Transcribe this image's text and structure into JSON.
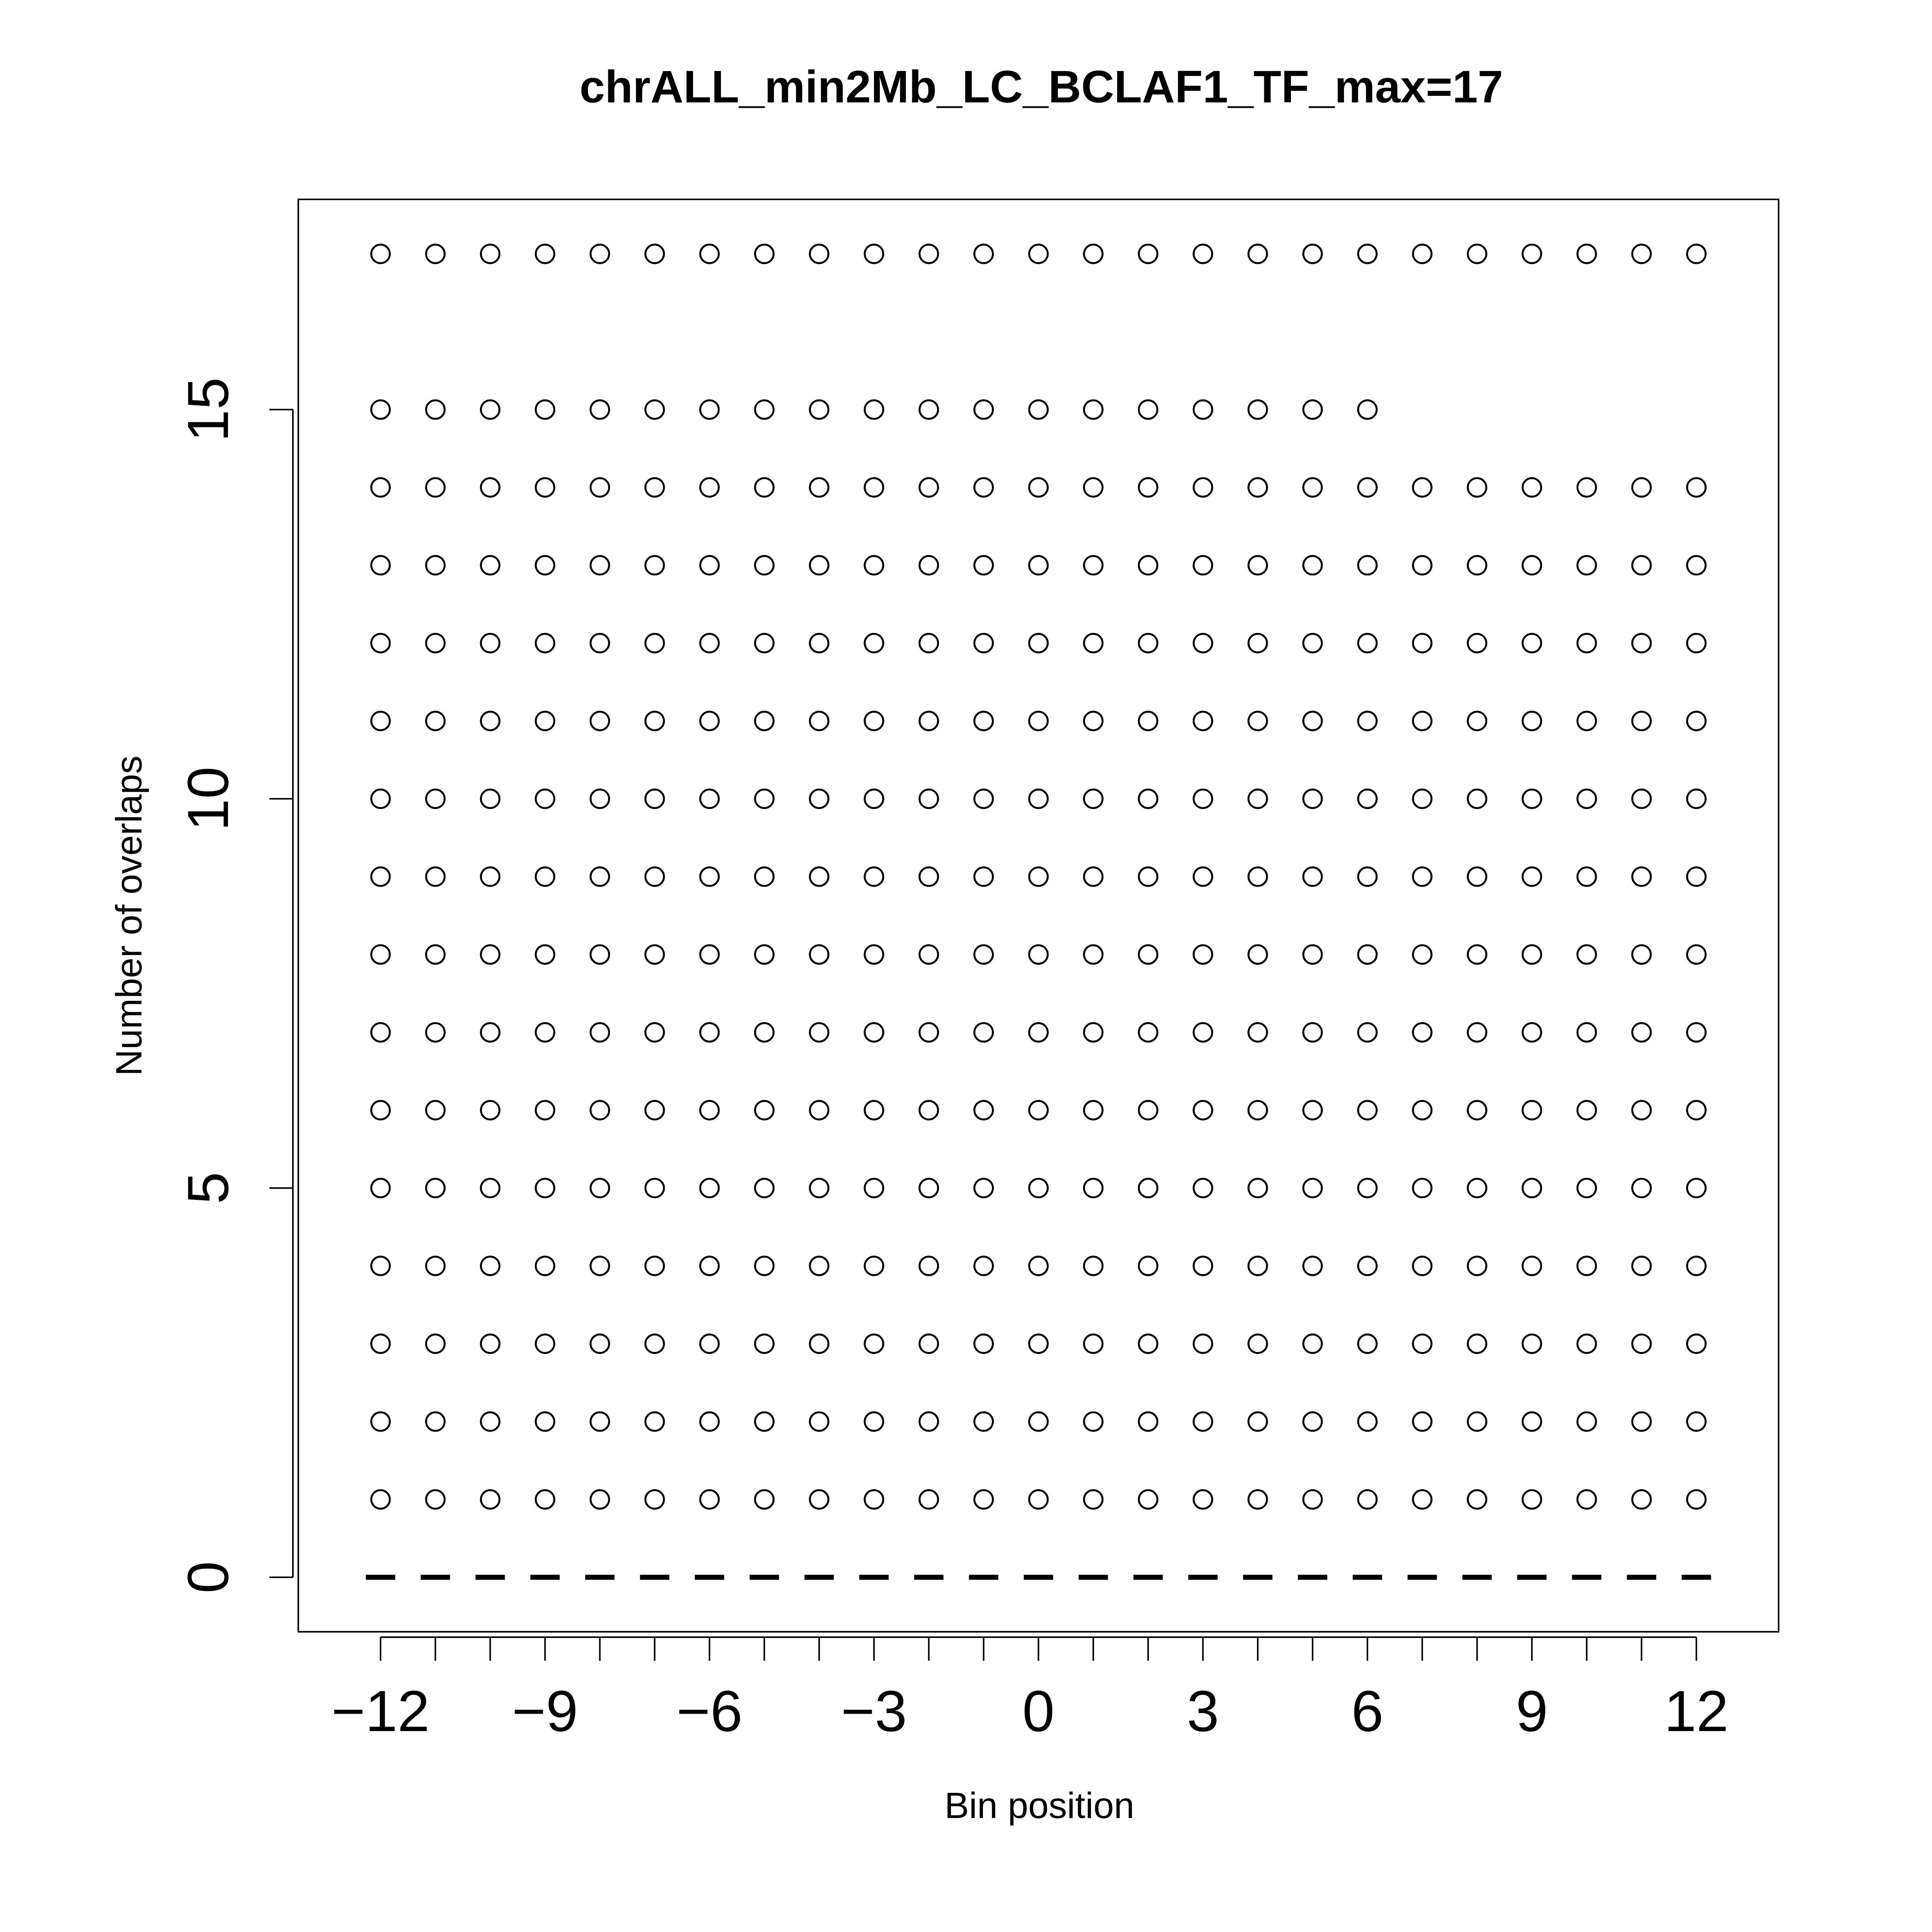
{
  "chart_data": {
    "type": "scatter",
    "title": "chrALL_min2Mb_LC_BCLAF1_TF_max=17",
    "xlabel": "Bin position",
    "ylabel": "Number of overlaps",
    "xlim": [
      -13.5,
      13.5
    ],
    "ylim": [
      -0.7,
      17.7
    ],
    "x_ticks": [
      -12,
      -11,
      -10,
      -9,
      -8,
      -7,
      -6,
      -5,
      -4,
      -3,
      -2,
      -1,
      0,
      1,
      2,
      3,
      4,
      5,
      6,
      7,
      8,
      9,
      10,
      11,
      12
    ],
    "x_tick_labels": [
      {
        "value": -12,
        "label": "−12"
      },
      {
        "value": -9,
        "label": "−9"
      },
      {
        "value": -6,
        "label": "−6"
      },
      {
        "value": -3,
        "label": "−3"
      },
      {
        "value": 0,
        "label": "0"
      },
      {
        "value": 3,
        "label": "3"
      },
      {
        "value": 6,
        "label": "6"
      },
      {
        "value": 9,
        "label": "9"
      },
      {
        "value": 12,
        "label": "12"
      }
    ],
    "y_ticks": [
      0,
      5,
      10,
      15
    ],
    "y_tick_labels": [
      "0",
      "5",
      "10",
      "15"
    ],
    "grid": false,
    "marker": "open-circle",
    "zero_marker": "dash",
    "point_columns": [
      {
        "x": -12,
        "y": [
          0,
          1,
          2,
          3,
          4,
          5,
          6,
          7,
          8,
          9,
          10,
          11,
          12,
          13,
          14,
          15,
          17
        ]
      },
      {
        "x": -11,
        "y": [
          0,
          1,
          2,
          3,
          4,
          5,
          6,
          7,
          8,
          9,
          10,
          11,
          12,
          13,
          14,
          15,
          17
        ]
      },
      {
        "x": -10,
        "y": [
          0,
          1,
          2,
          3,
          4,
          5,
          6,
          7,
          8,
          9,
          10,
          11,
          12,
          13,
          14,
          15,
          17
        ]
      },
      {
        "x": -9,
        "y": [
          0,
          1,
          2,
          3,
          4,
          5,
          6,
          7,
          8,
          9,
          10,
          11,
          12,
          13,
          14,
          15,
          17
        ]
      },
      {
        "x": -8,
        "y": [
          0,
          1,
          2,
          3,
          4,
          5,
          6,
          7,
          8,
          9,
          10,
          11,
          12,
          13,
          14,
          15,
          17
        ]
      },
      {
        "x": -7,
        "y": [
          0,
          1,
          2,
          3,
          4,
          5,
          6,
          7,
          8,
          9,
          10,
          11,
          12,
          13,
          14,
          15,
          17
        ]
      },
      {
        "x": -6,
        "y": [
          0,
          1,
          2,
          3,
          4,
          5,
          6,
          7,
          8,
          9,
          10,
          11,
          12,
          13,
          14,
          15,
          17
        ]
      },
      {
        "x": -5,
        "y": [
          0,
          1,
          2,
          3,
          4,
          5,
          6,
          7,
          8,
          9,
          10,
          11,
          12,
          13,
          14,
          15,
          17
        ]
      },
      {
        "x": -4,
        "y": [
          0,
          1,
          2,
          3,
          4,
          5,
          6,
          7,
          8,
          9,
          10,
          11,
          12,
          13,
          14,
          15,
          17
        ]
      },
      {
        "x": -3,
        "y": [
          0,
          1,
          2,
          3,
          4,
          5,
          6,
          7,
          8,
          9,
          10,
          11,
          12,
          13,
          14,
          15,
          17
        ]
      },
      {
        "x": -2,
        "y": [
          0,
          1,
          2,
          3,
          4,
          5,
          6,
          7,
          8,
          9,
          10,
          11,
          12,
          13,
          14,
          15,
          17
        ]
      },
      {
        "x": -1,
        "y": [
          0,
          1,
          2,
          3,
          4,
          5,
          6,
          7,
          8,
          9,
          10,
          11,
          12,
          13,
          14,
          15,
          17
        ]
      },
      {
        "x": 0,
        "y": [
          0,
          1,
          2,
          3,
          4,
          5,
          6,
          7,
          8,
          9,
          10,
          11,
          12,
          13,
          14,
          15,
          17
        ]
      },
      {
        "x": 1,
        "y": [
          0,
          1,
          2,
          3,
          4,
          5,
          6,
          7,
          8,
          9,
          10,
          11,
          12,
          13,
          14,
          15,
          17
        ]
      },
      {
        "x": 2,
        "y": [
          0,
          1,
          2,
          3,
          4,
          5,
          6,
          7,
          8,
          9,
          10,
          11,
          12,
          13,
          14,
          15,
          17
        ]
      },
      {
        "x": 3,
        "y": [
          0,
          1,
          2,
          3,
          4,
          5,
          6,
          7,
          8,
          9,
          10,
          11,
          12,
          13,
          14,
          15,
          17
        ]
      },
      {
        "x": 4,
        "y": [
          0,
          1,
          2,
          3,
          4,
          5,
          6,
          7,
          8,
          9,
          10,
          11,
          12,
          13,
          14,
          15,
          17
        ]
      },
      {
        "x": 5,
        "y": [
          0,
          1,
          2,
          3,
          4,
          5,
          6,
          7,
          8,
          9,
          10,
          11,
          12,
          13,
          14,
          15,
          17
        ]
      },
      {
        "x": 6,
        "y": [
          0,
          1,
          2,
          3,
          4,
          5,
          6,
          7,
          8,
          9,
          10,
          11,
          12,
          13,
          14,
          15,
          17
        ]
      },
      {
        "x": 7,
        "y": [
          0,
          1,
          2,
          3,
          4,
          5,
          6,
          7,
          8,
          9,
          10,
          11,
          12,
          13,
          14,
          17
        ]
      },
      {
        "x": 8,
        "y": [
          0,
          1,
          2,
          3,
          4,
          5,
          6,
          7,
          8,
          9,
          10,
          11,
          12,
          13,
          14,
          17
        ]
      },
      {
        "x": 9,
        "y": [
          0,
          1,
          2,
          3,
          4,
          5,
          6,
          7,
          8,
          9,
          10,
          11,
          12,
          13,
          14,
          17
        ]
      },
      {
        "x": 10,
        "y": [
          0,
          1,
          2,
          3,
          4,
          5,
          6,
          7,
          8,
          9,
          10,
          11,
          12,
          13,
          14,
          17
        ]
      },
      {
        "x": 11,
        "y": [
          0,
          1,
          2,
          3,
          4,
          5,
          6,
          7,
          8,
          9,
          10,
          11,
          12,
          13,
          14,
          17
        ]
      },
      {
        "x": 12,
        "y": [
          0,
          1,
          2,
          3,
          4,
          5,
          6,
          7,
          8,
          9,
          10,
          11,
          12,
          13,
          14,
          17
        ]
      }
    ]
  }
}
